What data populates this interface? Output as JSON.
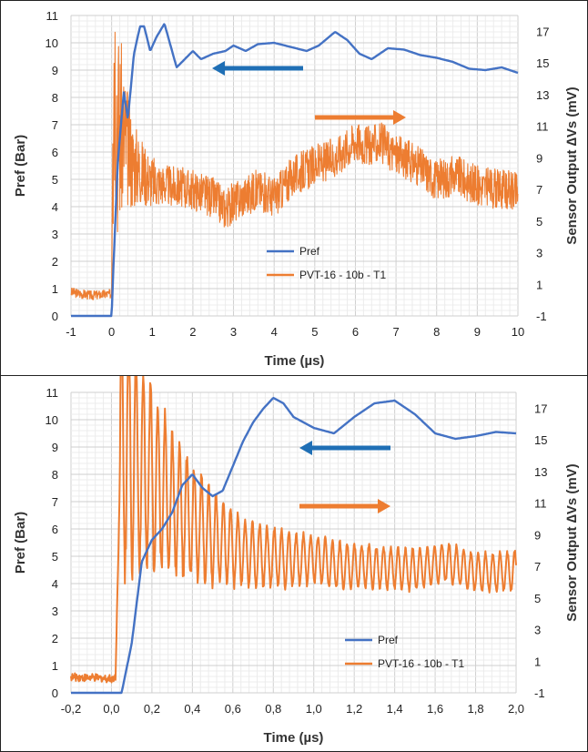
{
  "colors": {
    "pref": "#4472C4",
    "sensor": "#ED7D31",
    "arrow_blue": "#1F6FB5",
    "arrow_orange": "#ED7D31",
    "grid": "#d9d9d9"
  },
  "chart_data": [
    {
      "type": "line",
      "xlabel": "Time (µs)",
      "ylabel": "Pref (Bar)",
      "y2label": "Sensor Output ∆Vs (mV)",
      "xlim": [
        -1,
        10
      ],
      "ylim": [
        0,
        11
      ],
      "y2lim": [
        -1,
        18
      ],
      "x_ticks": [
        "-1",
        "0",
        "1",
        "2",
        "3",
        "4",
        "5",
        "6",
        "7",
        "8",
        "9",
        "10"
      ],
      "y_ticks": [
        "0",
        "1",
        "2",
        "3",
        "4",
        "5",
        "6",
        "7",
        "8",
        "9",
        "10",
        "11"
      ],
      "y2_ticks": [
        "-1",
        "1",
        "3",
        "5",
        "7",
        "9",
        "11",
        "13",
        "15",
        "17"
      ],
      "grid": true,
      "legend": {
        "position": "center-bottom",
        "entries": [
          "Pref",
          "PVT-16 - 10b - T1"
        ]
      },
      "series": [
        {
          "name": "Pref",
          "axis": "left",
          "x": [
            -1,
            0,
            0.05,
            0.15,
            0.3,
            0.4,
            0.55,
            0.7,
            0.8,
            0.95,
            1.1,
            1.3,
            1.45,
            1.6,
            1.8,
            2.0,
            2.2,
            2.5,
            2.8,
            3.0,
            3.3,
            3.6,
            4.0,
            4.4,
            4.8,
            5.1,
            5.5,
            5.8,
            6.1,
            6.4,
            6.8,
            7.2,
            7.6,
            8.0,
            8.4,
            8.8,
            9.2,
            9.6,
            10.0
          ],
          "y": [
            0,
            0,
            2.0,
            5.6,
            8.2,
            7.2,
            9.6,
            10.6,
            10.6,
            9.7,
            10.2,
            10.7,
            9.9,
            9.1,
            9.4,
            9.7,
            9.4,
            9.6,
            9.7,
            9.9,
            9.7,
            9.95,
            10.0,
            9.85,
            9.7,
            9.9,
            10.4,
            10.1,
            9.6,
            9.4,
            9.8,
            9.75,
            9.55,
            9.45,
            9.3,
            9.05,
            9.0,
            9.1,
            8.9
          ]
        },
        {
          "name": "PVT-16 - 10b - T1",
          "axis": "right",
          "x": [
            -1,
            -0.5,
            0,
            0.05,
            0.15,
            0.3,
            0.5,
            0.8,
            1.0,
            1.5,
            2.0,
            2.5,
            2.8,
            3.2,
            3.6,
            4.0,
            4.5,
            5.0,
            5.5,
            6.0,
            6.3,
            6.6,
            7.0,
            7.5,
            8.0,
            8.5,
            9.0,
            9.5,
            10.0
          ],
          "y": [
            0.5,
            0.3,
            0.4,
            17.0,
            11.0,
            10.5,
            8.8,
            8.0,
            7.5,
            7.2,
            7.0,
            6.5,
            5.8,
            6.5,
            7.0,
            6.5,
            7.9,
            8.5,
            9.0,
            10.1,
            9.7,
            10.0,
            9.2,
            8.6,
            7.6,
            7.9,
            7.2,
            7.0,
            6.8
          ]
        }
      ]
    },
    {
      "type": "line",
      "xlabel": "Time (µs)",
      "ylabel": "Pref (Bar)",
      "y2label": "Sensor Output ∆Vs (mV)",
      "xlim": [
        -0.2,
        2.0
      ],
      "ylim": [
        0,
        11
      ],
      "y2lim": [
        -1,
        18
      ],
      "x_ticks": [
        "-0,2",
        "0,0",
        "0,2",
        "0,4",
        "0,6",
        "0,8",
        "1,0",
        "1,2",
        "1,4",
        "1,6",
        "1,8",
        "2,0"
      ],
      "y_ticks": [
        "0",
        "1",
        "2",
        "3",
        "4",
        "5",
        "6",
        "7",
        "8",
        "9",
        "10",
        "11"
      ],
      "y2_ticks": [
        "-1",
        "1",
        "3",
        "5",
        "7",
        "9",
        "11",
        "13",
        "15",
        "17"
      ],
      "grid": true,
      "legend": {
        "position": "bottom-right",
        "entries": [
          "Pref",
          "PVT-16 - 10b - T1"
        ]
      },
      "series": [
        {
          "name": "Pref",
          "axis": "left",
          "x": [
            -0.2,
            0.0,
            0.05,
            0.1,
            0.15,
            0.2,
            0.25,
            0.3,
            0.35,
            0.4,
            0.45,
            0.5,
            0.55,
            0.6,
            0.65,
            0.7,
            0.75,
            0.8,
            0.85,
            0.9,
            1.0,
            1.1,
            1.2,
            1.3,
            1.4,
            1.5,
            1.6,
            1.7,
            1.8,
            1.9,
            2.0
          ],
          "y": [
            0,
            0,
            0,
            1.8,
            4.8,
            5.6,
            6.0,
            6.6,
            7.6,
            8.0,
            7.5,
            7.2,
            7.4,
            8.3,
            9.2,
            9.9,
            10.4,
            10.8,
            10.6,
            10.1,
            9.7,
            9.5,
            10.1,
            10.6,
            10.7,
            10.2,
            9.5,
            9.3,
            9.4,
            9.55,
            9.5
          ]
        },
        {
          "name": "PVT-16 - 10b - T1",
          "axis": "right",
          "x": [
            -0.2,
            0.0,
            0.02,
            0.05,
            0.1,
            0.2,
            0.3,
            0.5,
            0.7,
            0.9,
            1.0,
            1.1,
            1.3,
            1.5,
            1.65,
            1.8,
            2.0
          ],
          "y": [
            0,
            -0.1,
            0,
            17.0,
            16.0,
            14.0,
            12.0,
            9.5,
            8.2,
            7.8,
            7.9,
            7.4,
            7.3,
            7.1,
            7.6,
            6.9,
            7.0
          ]
        }
      ]
    }
  ]
}
